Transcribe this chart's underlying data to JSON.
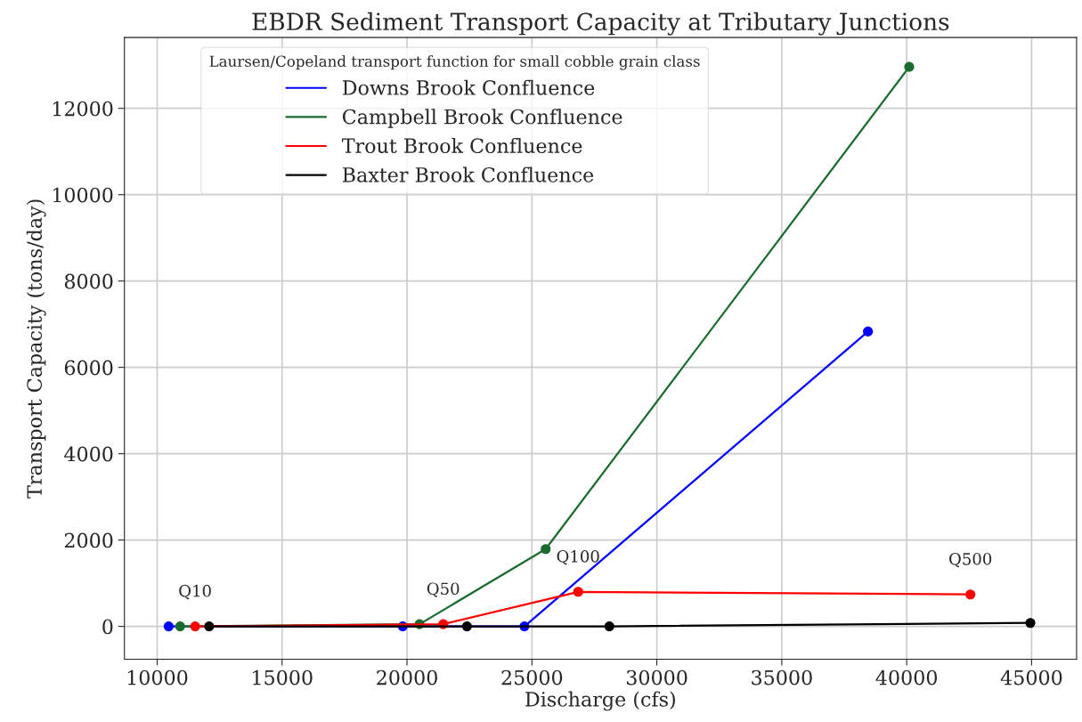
{
  "chart_data": {
    "type": "line",
    "title": "EBDR Sediment Transport Capacity at Tributary Junctions",
    "xlabel": "Discharge (cfs)",
    "ylabel": "Transport Capacity (tons/day)",
    "legend_title": "Laursen/Copeland transport function for small cobble grain class",
    "series": [
      {
        "name": "Downs Brook Confluence",
        "color": "#0000ff",
        "x": [
          10460,
          19830,
          24700,
          38450
        ],
        "values": [
          0,
          0,
          0,
          6830
        ]
      },
      {
        "name": "Campbell Brook Confluence",
        "color": "#1a6b2e",
        "x": [
          10920,
          20500,
          25550,
          40100
        ],
        "values": [
          0,
          50,
          1790,
          12960
        ]
      },
      {
        "name": "Trout Brook Confluence",
        "color": "#ff0000",
        "x": [
          11520,
          21450,
          26850,
          42550
        ],
        "values": [
          0,
          50,
          800,
          740
        ]
      },
      {
        "name": "Baxter Brook Confluence",
        "color": "#000000",
        "x": [
          12080,
          22400,
          28100,
          44950
        ],
        "values": [
          0,
          0,
          0,
          80
        ]
      }
    ],
    "annotations": [
      "Q10",
      "Q50",
      "Q100",
      "Q500"
    ],
    "xlim": [
      8690,
      46800
    ],
    "ylim": [
      -760,
      13640
    ],
    "xticks": [
      10000,
      15000,
      20000,
      25000,
      30000,
      35000,
      40000,
      45000
    ],
    "yticks": [
      0,
      2000,
      4000,
      6000,
      8000,
      10000,
      12000
    ],
    "grid": true,
    "legend": "top left",
    "marker": "circle",
    "line_style": "solid"
  }
}
